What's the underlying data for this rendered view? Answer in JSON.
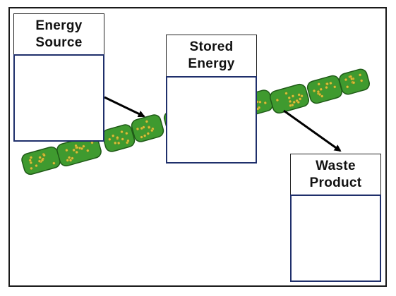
{
  "labels": {
    "energy_source": "Energy\nSource",
    "stored_energy": "Stored\nEnergy",
    "waste_product": "Waste\nProduct"
  },
  "colors": {
    "cell_fill": "#3f9a2f",
    "cell_edge": "#1f5a17",
    "chloroplast": "#d6c23a",
    "answer_border": "#1f2f6b",
    "arrow": "#000000"
  },
  "icons": {
    "filament": "algae-filament-icon",
    "arrow": "arrow-icon"
  }
}
